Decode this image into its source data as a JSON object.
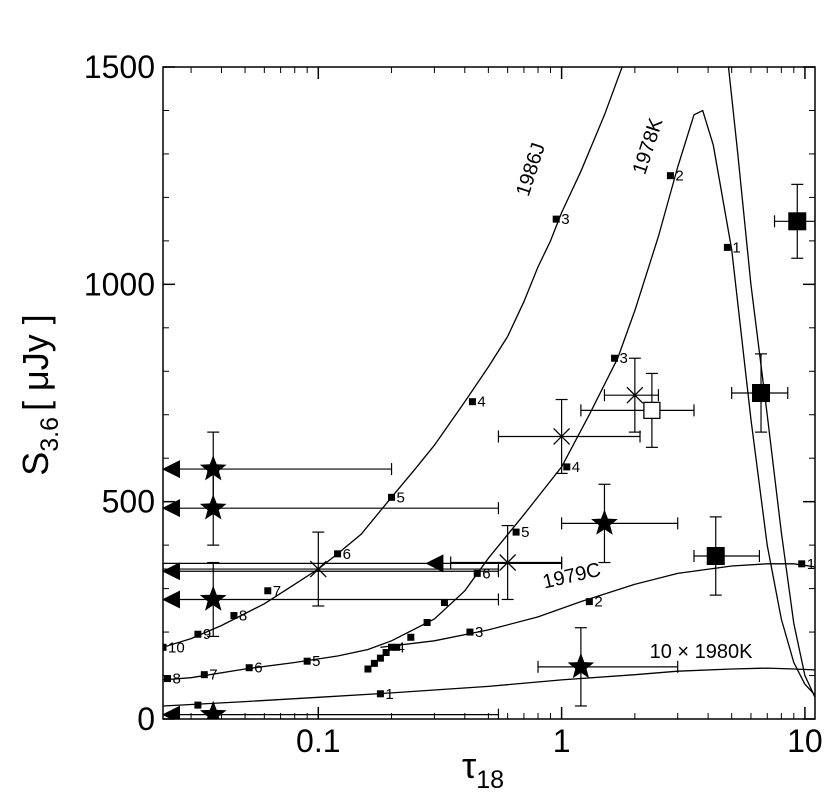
{
  "chart_data": {
    "type": "scatter",
    "xlabel": "τ",
    "xlabel_sub": "18",
    "ylabel": "S",
    "ylabel_sub": "3.6",
    "ylabel_unit": "[ μJy ]",
    "xscale": "log",
    "xlim": [
      0.023,
      11
    ],
    "ylim": [
      0,
      1500
    ],
    "x_ticks": [
      {
        "value": 0.1,
        "label": "0.1"
      },
      {
        "value": 1,
        "label": "1"
      },
      {
        "value": 10,
        "label": "10"
      }
    ],
    "y_ticks": [
      {
        "value": 0,
        "label": "0"
      },
      {
        "value": 500,
        "label": "500"
      },
      {
        "value": 1000,
        "label": "1000"
      },
      {
        "value": 1500,
        "label": "1500"
      }
    ],
    "curves": [
      {
        "name": "1986J",
        "label_pos": {
          "x": 0.73,
          "y": 1200,
          "rot": -72
        },
        "points": [
          [
            0.023,
            165
          ],
          [
            0.03,
            185
          ],
          [
            0.04,
            215
          ],
          [
            0.06,
            265
          ],
          [
            0.08,
            310
          ],
          [
            0.1,
            345
          ],
          [
            0.12,
            380
          ],
          [
            0.15,
            425
          ],
          [
            0.2,
            510
          ],
          [
            0.25,
            575
          ],
          [
            0.3,
            630
          ],
          [
            0.4,
            730
          ],
          [
            0.5,
            810
          ],
          [
            0.6,
            880
          ],
          [
            0.7,
            960
          ],
          [
            0.8,
            1040
          ],
          [
            0.9,
            1100
          ],
          [
            1.0,
            1165
          ],
          [
            1.2,
            1260
          ],
          [
            1.5,
            1390
          ],
          [
            1.8,
            1510
          ],
          [
            2.0,
            1590
          ]
        ],
        "markers": [
          {
            "x": 0.023,
            "y": 165,
            "label": "10"
          },
          {
            "x": 0.032,
            "y": 195,
            "label": "9"
          },
          {
            "x": 0.045,
            "y": 238,
            "label": "8"
          },
          {
            "x": 0.062,
            "y": 295,
            "label": "7"
          },
          {
            "x": 0.12,
            "y": 380,
            "label": "6"
          },
          {
            "x": 0.2,
            "y": 510,
            "label": "5"
          },
          {
            "x": 0.43,
            "y": 730,
            "label": "4"
          },
          {
            "x": 0.95,
            "y": 1150,
            "label": "3"
          }
        ]
      },
      {
        "name": "1978K",
        "label_pos": {
          "x": 2.2,
          "y": 1250,
          "rot": -72
        },
        "points": [
          [
            0.023,
            90
          ],
          [
            0.03,
            95
          ],
          [
            0.05,
            115
          ],
          [
            0.08,
            130
          ],
          [
            0.12,
            145
          ],
          [
            0.16,
            160
          ],
          [
            0.2,
            180
          ],
          [
            0.3,
            230
          ],
          [
            0.4,
            295
          ],
          [
            0.5,
            370
          ],
          [
            0.7,
            470
          ],
          [
            1.0,
            580
          ],
          [
            1.3,
            700
          ],
          [
            1.7,
            830
          ],
          [
            2.0,
            940
          ],
          [
            2.5,
            1110
          ],
          [
            3.0,
            1270
          ],
          [
            3.5,
            1390
          ],
          [
            3.8,
            1400
          ],
          [
            4.2,
            1320
          ],
          [
            5.0,
            1080
          ],
          [
            6.0,
            690
          ],
          [
            7.0,
            400
          ],
          [
            8.0,
            230
          ],
          [
            9.0,
            130
          ],
          [
            10.0,
            80
          ],
          [
            11.0,
            55
          ]
        ],
        "markers": [
          {
            "x": 0.024,
            "y": 93,
            "label": "8"
          },
          {
            "x": 0.034,
            "y": 102,
            "label": "7"
          },
          {
            "x": 0.052,
            "y": 118,
            "label": "6"
          },
          {
            "x": 0.09,
            "y": 133,
            "label": "5"
          },
          {
            "x": 0.45,
            "y": 335,
            "label": "6"
          },
          {
            "x": 0.65,
            "y": 430,
            "label": "5"
          },
          {
            "x": 1.05,
            "y": 580,
            "label": "4"
          },
          {
            "x": 1.65,
            "y": 830,
            "label": "3"
          },
          {
            "x": 2.8,
            "y": 1250,
            "label": "2"
          },
          {
            "x": 4.8,
            "y": 1085,
            "label": "1"
          }
        ],
        "extra_markers": [
          [
            0.16,
            115
          ],
          [
            0.17,
            128
          ],
          [
            0.18,
            140
          ],
          [
            0.19,
            153
          ],
          [
            0.21,
            165
          ],
          [
            0.24,
            188
          ],
          [
            0.28,
            222
          ],
          [
            0.33,
            268
          ]
        ]
      },
      {
        "name": "1979C",
        "label_pos": {
          "x": 0.85,
          "y": 300,
          "rot": -13
        },
        "points": [
          [
            0.18,
            165
          ],
          [
            0.3,
            180
          ],
          [
            0.5,
            205
          ],
          [
            0.8,
            235
          ],
          [
            1.2,
            270
          ],
          [
            2.0,
            310
          ],
          [
            3.0,
            335
          ],
          [
            5.0,
            352
          ],
          [
            7.0,
            357
          ],
          [
            9.0,
            357
          ],
          [
            11.0,
            350
          ]
        ],
        "markers": [
          {
            "x": 0.2,
            "y": 165,
            "label": "4"
          },
          {
            "x": 0.42,
            "y": 200,
            "label": "3"
          },
          {
            "x": 1.3,
            "y": 270,
            "label": "2"
          },
          {
            "x": 9.7,
            "y": 357,
            "label": "1"
          }
        ]
      },
      {
        "name": "10 × 1980K",
        "label_pos": {
          "x": 2.3,
          "y": 140,
          "rot": 0
        },
        "points": [
          [
            0.023,
            30
          ],
          [
            0.05,
            40
          ],
          [
            0.1,
            50
          ],
          [
            0.2,
            60
          ],
          [
            0.5,
            75
          ],
          [
            1.0,
            90
          ],
          [
            2.0,
            102
          ],
          [
            3.0,
            110
          ],
          [
            5.0,
            115
          ],
          [
            7.0,
            117
          ],
          [
            9.0,
            115
          ],
          [
            11.0,
            113
          ]
        ],
        "markers": [
          {
            "x": 0.032,
            "y": 32,
            "label": ""
          },
          {
            "x": 0.18,
            "y": 58,
            "label": "1"
          }
        ]
      },
      {
        "name": "",
        "points": [
          [
            4.85,
            1500
          ],
          [
            5.3,
            1300
          ],
          [
            6.0,
            1000
          ],
          [
            7.0,
            700
          ],
          [
            8.0,
            430
          ],
          [
            9.0,
            220
          ],
          [
            10.0,
            100
          ],
          [
            11.0,
            50
          ]
        ],
        "markers": []
      }
    ],
    "stars": [
      {
        "x": 0.037,
        "y": 575,
        "yerr": 85,
        "xmin": 0.2,
        "upper_limit": true
      },
      {
        "x": 0.037,
        "y": 485,
        "yerr": 0,
        "xmin": 0.55,
        "upper_limit": true
      },
      {
        "x": 0.037,
        "y": 275,
        "yerr": 0,
        "xmin": 0.55,
        "upper_limit": true
      },
      {
        "x": 0.037,
        "y": 10,
        "yerr": 0,
        "xmin": 0.55,
        "upper_limit": true
      },
      {
        "x": 1.5,
        "y": 450,
        "yerr": 90,
        "xmin": 1.0,
        "xmax": 3.0
      },
      {
        "x": 1.2,
        "y": 120,
        "yerr": 90,
        "xmin": 0.8,
        "xmax": 3.0
      }
    ],
    "star_errbar_extra": [
      {
        "x": 0.037,
        "yerr": 85
      },
      {
        "x": 0.037,
        "yerr": 85
      }
    ],
    "triangles": [
      {
        "x": 0.023,
        "y": 575
      },
      {
        "x": 0.023,
        "y": 485
      },
      {
        "x": 0.023,
        "y": 340
      },
      {
        "x": 0.023,
        "y": 275
      },
      {
        "x": 0.023,
        "y": 10
      },
      {
        "x": 0.3,
        "y": 358
      }
    ],
    "triangle_lines": [
      {
        "y": 340,
        "xmax": 0.55
      },
      {
        "y": 358,
        "xmax": 1.0
      }
    ],
    "crosses": [
      {
        "x": 0.1,
        "y": 345,
        "yerr": 85,
        "xmin": 0.023,
        "xmax": 0.55
      },
      {
        "x": 1.0,
        "y": 650,
        "yerr": 85,
        "xmin": 0.55,
        "xmax": 2.1
      },
      {
        "x": 2.0,
        "y": 745,
        "yerr": 85,
        "xmin": 1.5,
        "xmax": 2.5
      },
      {
        "x": 0.6,
        "y": 360,
        "yerr": 85,
        "xmin": 0.35,
        "xmax": 1.0
      }
    ],
    "squares_filled": [
      {
        "x": 9.3,
        "y": 1145,
        "yerr": 85,
        "xmin": 7.5,
        "xmax": 11.0
      },
      {
        "x": 6.6,
        "y": 750,
        "yerr": 90,
        "xmin": 5.0,
        "xmax": 8.5
      },
      {
        "x": 4.3,
        "y": 375,
        "yerr": 90,
        "xmin": 3.5,
        "xmax": 6.5
      }
    ],
    "squares_open": [
      {
        "x": 2.35,
        "y": 710,
        "yerr": 85,
        "xmin": 1.2,
        "xmax": 3.5
      }
    ]
  }
}
